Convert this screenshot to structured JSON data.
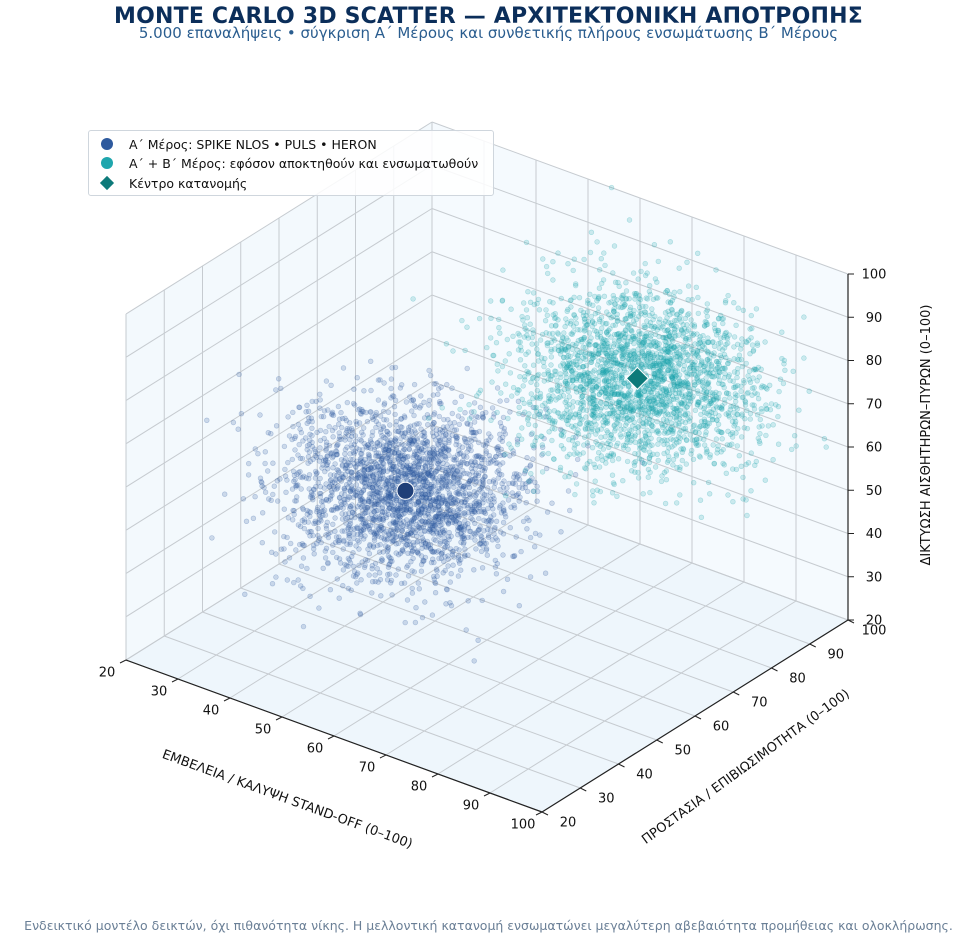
{
  "title": "MONTE CARLO 3D SCATTER — ΑΡΧΙΤΕΚΤΟΝΙΚΗ ΑΠΟΤΡΟΠΗΣ",
  "subtitle": "5.000 επαναλήψεις • σύγκριση Α΄ Μέρους και συνθετικής πλήρους ενσωμάτωσης Β΄ Μέρους",
  "footnote": "Ενδεικτικό μοντέλο δεικτών, όχι πιθανότητα νίκης. Η μελλοντική κατανομή ενσωματώνει μεγαλύτερη αβεβαιότητα προμήθειας και ολοκλήρωσης.",
  "chart_data": {
    "type": "scatter3d",
    "xlabel": "ΕΜΒΕΛΕΙΑ / ΚΑΛΥΨΗ STAND-OFF (0–100)",
    "ylabel": "ΠΡΟΣΤΑΣΙΑ / ΕΠΙΒΙΩΣΙΜΟΤΗΤΑ (0–100)",
    "zlabel": "ΔΙΚΤΥΩΣΗ ΑΙΣΘΗΤΗΡΩΝ–ΠΥΡΩΝ (0–100)",
    "xlim": [
      20,
      100
    ],
    "ylim": [
      20,
      100
    ],
    "zlim": [
      20,
      100
    ],
    "ticks": [
      20,
      30,
      40,
      50,
      60,
      70,
      80,
      90,
      100
    ],
    "tick_labels": [
      "20",
      "30",
      "40",
      "50",
      "60",
      "70",
      "80",
      "90",
      "100"
    ],
    "grid": true,
    "legend_position": "top-left",
    "iterations": 5000,
    "series": [
      {
        "name": "Α΄ Μέρος: SPIKE NLOS • PULS • HERON",
        "color": "#2e5a9e",
        "center": {
          "x": 48,
          "y": 55,
          "z": 52
        },
        "spread": {
          "x": 9,
          "y": 9,
          "z": 8
        }
      },
      {
        "name": "Α΄ + Β΄ Μέρος: εφόσον αποκτηθούν και ενσωματωθούν",
        "color": "#1fa6ad",
        "center": {
          "x": 72,
          "y": 83,
          "z": 73
        },
        "spread": {
          "x": 10,
          "y": 9,
          "z": 8
        }
      }
    ],
    "center_marker": {
      "name": "Κέντρο κατανομής",
      "color": "#0d7a7a",
      "markers": [
        {
          "series": 0,
          "color": "#1f3f78"
        },
        {
          "series": 1,
          "color": "#0d7a7a"
        }
      ]
    }
  }
}
